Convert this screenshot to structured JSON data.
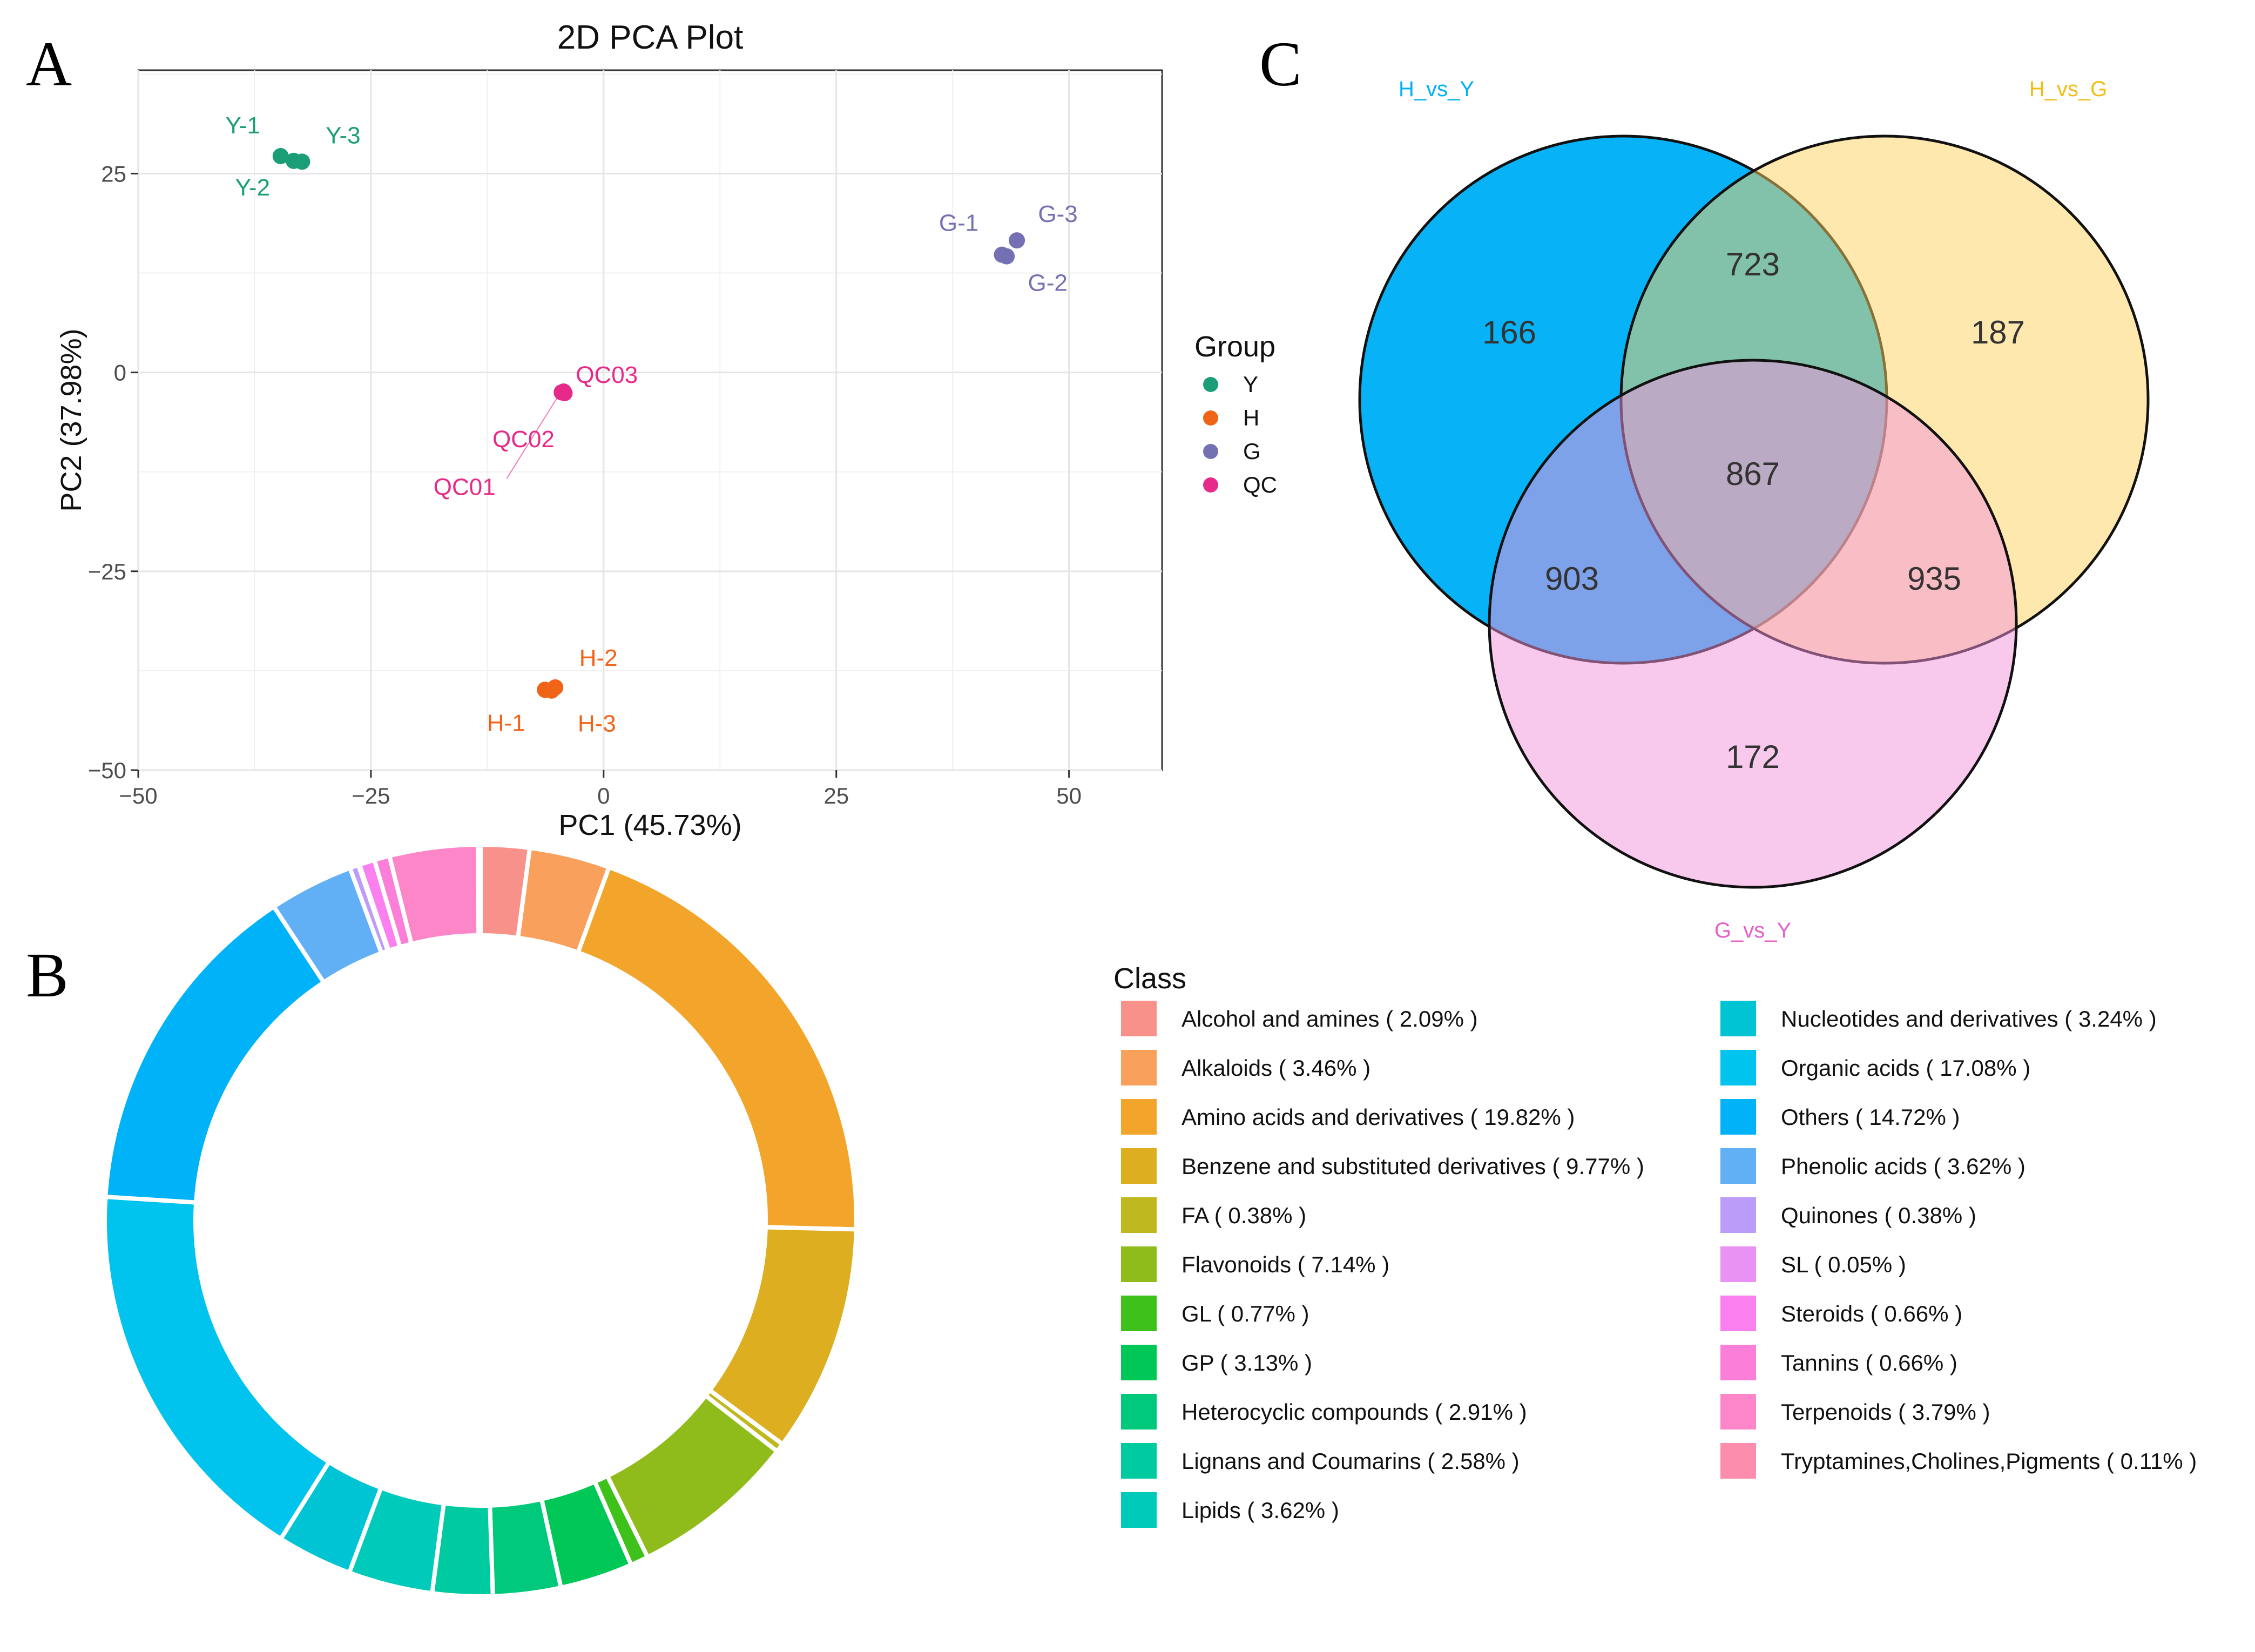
{
  "panels": {
    "A": "A",
    "B": "B",
    "C": "C"
  },
  "chart_data": [
    {
      "type": "scatter",
      "title": "2D PCA Plot",
      "xlabel": "PC1 (45.73%)",
      "ylabel": "PC2 (37.98%)",
      "xlim": [
        -50,
        60
      ],
      "ylim": [
        -50,
        38
      ],
      "xticks": [
        -50,
        -25,
        0,
        25,
        50
      ],
      "yticks": [
        -50,
        -25,
        0,
        25
      ],
      "xtick_labels": [
        "−50",
        "−25",
        "0",
        "25",
        "50"
      ],
      "ytick_labels": [
        "−50",
        "−25",
        "0",
        "25"
      ],
      "grid": true,
      "legend_title": "Group",
      "legend_position": "right",
      "series": [
        {
          "name": "Y",
          "color": "#1b9e77",
          "points": [
            {
              "label": "Y-1",
              "x": -34.7,
              "y": 27.2
            },
            {
              "label": "Y-2",
              "x": -33.3,
              "y": 26.6
            },
            {
              "label": "Y-3",
              "x": -32.4,
              "y": 26.5
            }
          ]
        },
        {
          "name": "H",
          "color": "#f06418",
          "points": [
            {
              "label": "H-1",
              "x": -6.3,
              "y": -39.9
            },
            {
              "label": "H-2",
              "x": -5.2,
              "y": -39.6
            },
            {
              "label": "H-3",
              "x": -5.6,
              "y": -40.0
            }
          ]
        },
        {
          "name": "G",
          "color": "#7570b3",
          "points": [
            {
              "label": "G-1",
              "x": 42.8,
              "y": 14.8
            },
            {
              "label": "G-2",
              "x": 43.3,
              "y": 14.6
            },
            {
              "label": "G-3",
              "x": 44.4,
              "y": 16.6
            }
          ]
        },
        {
          "name": "QC",
          "color": "#e7298a",
          "points": [
            {
              "label": "QC01",
              "x": -4.5,
              "y": -2.5
            },
            {
              "label": "QC02",
              "x": -4.2,
              "y": -2.6
            },
            {
              "label": "QC03",
              "x": -4.3,
              "y": -2.4
            }
          ]
        }
      ]
    },
    {
      "type": "pie",
      "legend_title": "Class",
      "slices": [
        {
          "label": "Alcohol and amines ( 2.09% )",
          "value": 2.09,
          "color": "#f8918a"
        },
        {
          "label": "Alkaloids ( 3.46% )",
          "value": 3.46,
          "color": "#f9a05c"
        },
        {
          "label": "Amino acids and derivatives ( 19.82% )",
          "value": 19.82,
          "color": "#f2a52a"
        },
        {
          "label": "Benzene and substituted derivatives ( 9.77% )",
          "value": 9.77,
          "color": "#dcae20"
        },
        {
          "label": "FA ( 0.38% )",
          "value": 0.38,
          "color": "#bfb81e"
        },
        {
          "label": "Flavonoids ( 7.14% )",
          "value": 7.14,
          "color": "#8fbc1a"
        },
        {
          "label": "GL ( 0.77% )",
          "value": 0.77,
          "color": "#3ec11a"
        },
        {
          "label": "GP ( 3.13% )",
          "value": 3.13,
          "color": "#00c756"
        },
        {
          "label": "Heterocyclic compounds ( 2.91% )",
          "value": 2.91,
          "color": "#00c97c"
        },
        {
          "label": "Lignans and Coumarins ( 2.58% )",
          "value": 2.58,
          "color": "#00ca9f"
        },
        {
          "label": "Lipids ( 3.62% )",
          "value": 3.62,
          "color": "#00cbbb"
        },
        {
          "label": "Nucleotides and derivatives ( 3.24% )",
          "value": 3.24,
          "color": "#00c4d4"
        },
        {
          "label": "Organic acids ( 17.08% )",
          "value": 17.08,
          "color": "#00c3ee"
        },
        {
          "label": "Others ( 14.72% )",
          "value": 14.72,
          "color": "#00b3f8"
        },
        {
          "label": "Phenolic acids ( 3.62% )",
          "value": 3.62,
          "color": "#61b0f6"
        },
        {
          "label": "Quinones ( 0.38% )",
          "value": 0.38,
          "color": "#bc9cf9"
        },
        {
          "label": "SL ( 0.05% )",
          "value": 0.05,
          "color": "#ea92f4"
        },
        {
          "label": "Steroids ( 0.66% )",
          "value": 0.66,
          "color": "#f980ee"
        },
        {
          "label": "Tannins ( 0.66% )",
          "value": 0.66,
          "color": "#fb7ed8"
        },
        {
          "label": "Terpenoids ( 3.79% )",
          "value": 3.79,
          "color": "#fd86c8"
        },
        {
          "label": "Tryptamines,Cholines,Pigments ( 0.11% )",
          "value": 0.11,
          "color": "#fc8dac"
        }
      ]
    },
    {
      "type": "venn",
      "sets": [
        {
          "name": "H_vs_Y",
          "color": "#00b0f6"
        },
        {
          "name": "H_vs_G",
          "color": "#fdd25e"
        },
        {
          "name": "G_vs_Y",
          "color": "#f191dc"
        }
      ],
      "regions": {
        "H_vs_Y_only": 166,
        "H_vs_G_only": 187,
        "G_vs_Y_only": 172,
        "H_vs_Y_and_H_vs_G": 723,
        "H_vs_Y_and_G_vs_Y": 903,
        "H_vs_G_and_G_vs_Y": 935,
        "all": 867
      }
    }
  ]
}
